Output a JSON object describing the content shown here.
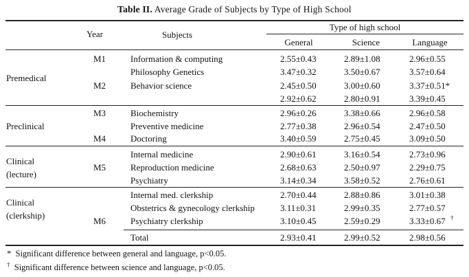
{
  "caption": {
    "label": "Table II.",
    "text": "Average Grade of Subjects by Type of High School"
  },
  "headers": {
    "year": "Year",
    "subjects": "Subjects",
    "group": "Type of high school",
    "general": "General",
    "science": "Science",
    "language": "Language"
  },
  "phases": [
    "Premedical",
    "Preclinical",
    "Clinical",
    "(lecture)",
    "Clinical",
    "(clerkship)"
  ],
  "years": [
    "M1",
    "M2",
    "M3",
    "M4",
    "M5",
    "M6"
  ],
  "rows": [
    {
      "subject": "Information & computing",
      "general": "2.55±0.43",
      "science": "2.89±1.08",
      "language": "2.96±0.55"
    },
    {
      "subject": "Philosophy Genetics",
      "general": "3.47±0.32",
      "science": "3.50±0.67",
      "language": "3.57±0.64"
    },
    {
      "subject": "Behavior science",
      "general": "2.45±0.50",
      "science": "3.00±0.60",
      "language": "3.37±0.51*"
    },
    {
      "subject": "",
      "general": "2.92±0.62",
      "science": "2.80±0.91",
      "language": "3.39±0.45"
    },
    {
      "subject": "Biochemistry",
      "general": "2.96±0.26",
      "science": "3.38±0.66",
      "language": "2.96±0.58"
    },
    {
      "subject": "Preventive medicine",
      "general": "2.77±0.38",
      "science": "2.96±0.54",
      "language": "2.47±0.50"
    },
    {
      "subject": "Doctoring",
      "general": "3.40±0.59",
      "science": "2.75±0.45",
      "language": "3.09±0.50"
    },
    {
      "subject": "Internal medicine",
      "general": "2.90±0.61",
      "science": "3.16±0.54",
      "language": "2.73±0.96"
    },
    {
      "subject": "Reproduction medicine",
      "general": "2.68±0.63",
      "science": "2.50±0.97",
      "language": "2.29±0.75"
    },
    {
      "subject": "Psychiatry",
      "general": "3.14±0.34",
      "science": "3.58±0.52",
      "language": "2.76±0.61"
    },
    {
      "subject": "Internal med. clerkship",
      "general": "2.70±0.44",
      "science": "2.88±0.86",
      "language": "3.01±0.38"
    },
    {
      "subject": "Obstetrics & gynecology clerkship",
      "general": "3.11±0.31",
      "science": "2.99±0.35",
      "language": "2.77±0.57"
    },
    {
      "subject": "Psychiatry clerkship",
      "general": "3.10±0.45",
      "science": "2.59±0.29",
      "language": "3.33±0.67"
    }
  ],
  "dagger": "†",
  "total": {
    "label": "Total",
    "general": "2.93±0.41",
    "science": "2.99±0.52",
    "language": "2.98±0.56"
  },
  "footnotes": [
    {
      "mark": "*",
      "text": "Significant difference between general and language, p<0.05."
    },
    {
      "mark": "†",
      "text": "Significant difference between science and language, p<0.05."
    }
  ]
}
